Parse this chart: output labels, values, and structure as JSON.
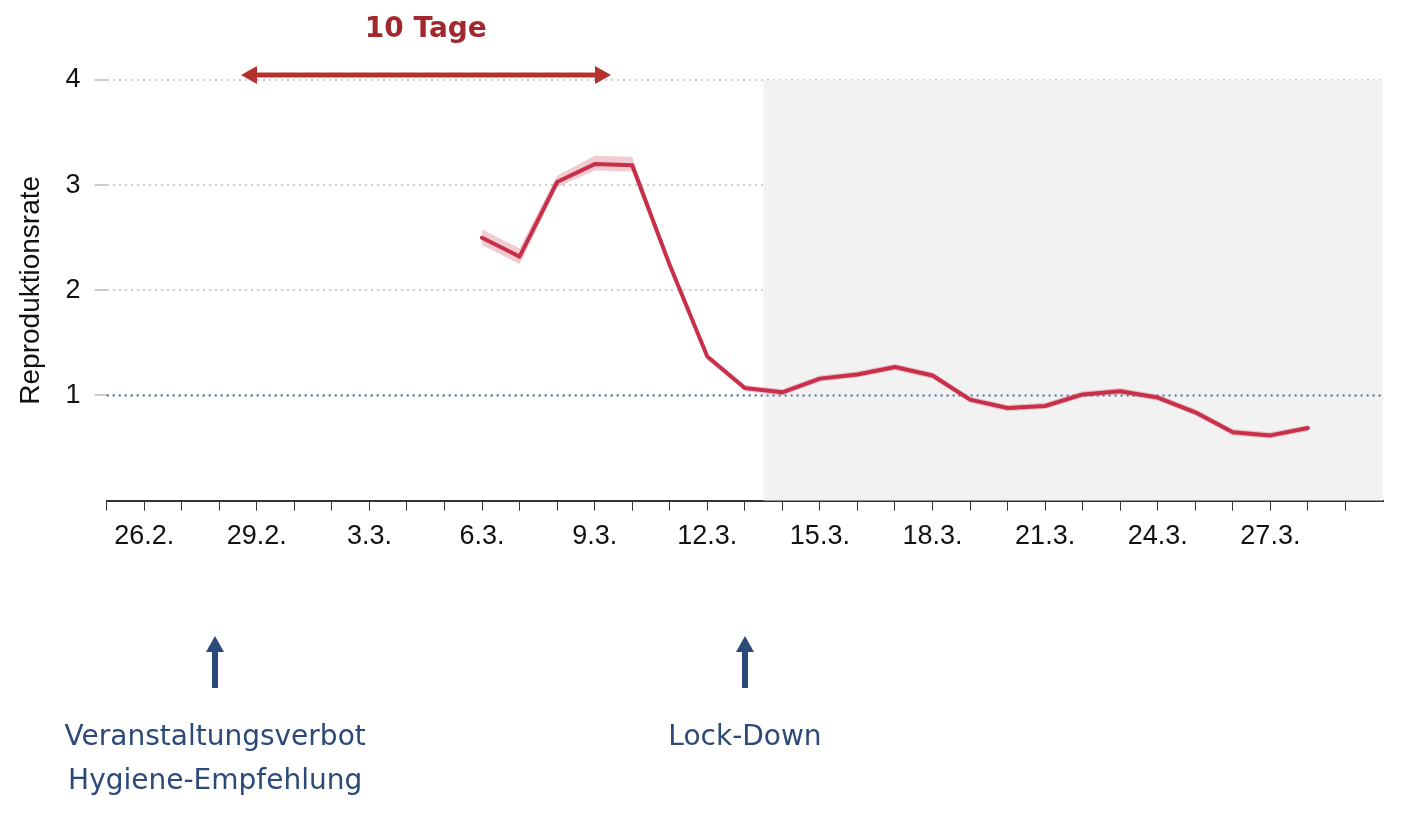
{
  "chart_data": {
    "type": "line",
    "ylabel": "Reproduktionsrate",
    "x": [
      "--03-06",
      "--03-07",
      "--03-08",
      "--03-09",
      "--03-10",
      "--03-11",
      "--03-12",
      "--03-13",
      "--03-14",
      "--03-15",
      "--03-16",
      "--03-17",
      "--03-18",
      "--03-19",
      "--03-20",
      "--03-21",
      "--03-22",
      "--03-23",
      "--03-24",
      "--03-25",
      "--03-26",
      "--03-27",
      "--03-28"
    ],
    "series": [
      {
        "color": "#c8304a",
        "values": [
          2.5,
          2.32,
          3.03,
          3.2,
          3.19,
          2.24,
          1.37,
          1.07,
          1.03,
          1.16,
          1.2,
          1.27,
          1.19,
          0.96,
          0.88,
          0.9,
          1.01,
          1.04,
          0.98,
          0.84,
          0.65,
          0.62,
          0.69
        ],
        "lower": [
          2.43,
          2.25,
          2.98,
          3.14,
          3.13,
          2.2,
          1.34,
          1.04,
          1.0,
          1.13,
          1.17,
          1.24,
          1.16,
          0.93,
          0.85,
          0.87,
          0.98,
          1.01,
          0.95,
          0.81,
          0.62,
          0.59,
          0.66
        ],
        "upper": [
          2.58,
          2.4,
          3.09,
          3.28,
          3.27,
          2.28,
          1.4,
          1.1,
          1.06,
          1.19,
          1.23,
          1.3,
          1.22,
          0.99,
          0.91,
          0.93,
          1.04,
          1.07,
          1.01,
          0.87,
          0.68,
          0.65,
          0.72
        ]
      }
    ],
    "xlim": [
      "--02-25",
      "--03-30"
    ],
    "xticks": [
      {
        "value": "--02-25",
        "label": null
      },
      {
        "value": "--02-26",
        "label": "26.2."
      },
      {
        "value": "--02-27",
        "label": null
      },
      {
        "value": "--02-28",
        "label": null
      },
      {
        "value": "--02-29",
        "label": "29.2."
      },
      {
        "value": "--03-01",
        "label": null
      },
      {
        "value": "--03-02",
        "label": null
      },
      {
        "value": "--03-03",
        "label": "3.3."
      },
      {
        "value": "--03-04",
        "label": null
      },
      {
        "value": "--03-05",
        "label": null
      },
      {
        "value": "--03-06",
        "label": "6.3."
      },
      {
        "value": "--03-07",
        "label": null
      },
      {
        "value": "--03-08",
        "label": null
      },
      {
        "value": "--03-09",
        "label": "9.3."
      },
      {
        "value": "--03-10",
        "label": null
      },
      {
        "value": "--03-11",
        "label": null
      },
      {
        "value": "--03-12",
        "label": "12.3."
      },
      {
        "value": "--03-13",
        "label": null
      },
      {
        "value": "--03-14",
        "label": null
      },
      {
        "value": "--03-15",
        "label": "15.3."
      },
      {
        "value": "--03-16",
        "label": null
      },
      {
        "value": "--03-17",
        "label": null
      },
      {
        "value": "--03-18",
        "label": "18.3."
      },
      {
        "value": "--03-19",
        "label": null
      },
      {
        "value": "--03-20",
        "label": null
      },
      {
        "value": "--03-21",
        "label": "21.3."
      },
      {
        "value": "--03-22",
        "label": null
      },
      {
        "value": "--03-23",
        "label": null
      },
      {
        "value": "--03-24",
        "label": "24.3."
      },
      {
        "value": "--03-25",
        "label": null
      },
      {
        "value": "--03-26",
        "label": null
      },
      {
        "value": "--03-27",
        "label": "27.3."
      },
      {
        "value": "--03-28",
        "label": null
      },
      {
        "value": "--03-29",
        "label": null
      }
    ],
    "ylim": [
      0,
      4
    ],
    "yticks": [
      1,
      2,
      3,
      4
    ],
    "grid": "y",
    "marker": "none",
    "line_style": "solid",
    "legend": false,
    "ref_lines": [
      {
        "axis": "y",
        "value": 1,
        "color": "#4a6fa5",
        "line_style": "dotted"
      }
    ],
    "bands": [
      {
        "axis": "x",
        "from": "--03-13T12:00",
        "to": "--03-30",
        "color": "#f2f2f2"
      }
    ],
    "annotations": [
      "10 Tage",
      "Veranstaltungsverbot\nHygiene-Empfehlung",
      "Lock-Down"
    ]
  }
}
